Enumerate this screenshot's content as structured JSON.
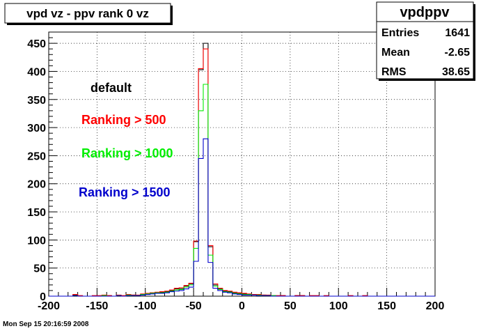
{
  "title_box": {
    "text": "vpd vz - ppv rank 0 vz"
  },
  "stats_box": {
    "name": "vpdppv",
    "rows": [
      {
        "label": "Entries",
        "value": "1641"
      },
      {
        "label": "Mean",
        "value": "-2.65"
      },
      {
        "label": "RMS",
        "value": "38.65"
      }
    ]
  },
  "annotations": [
    {
      "text": "default",
      "color": "#000000"
    },
    {
      "text": "Ranking > 500",
      "color": "#ff0000"
    },
    {
      "text": "Ranking > 1000",
      "color": "#00ee00"
    },
    {
      "text": "Ranking > 1500",
      "color": "#0000cc"
    }
  ],
  "timestamp": "Mon Sep 15 20:16:59 2008",
  "chart_data": {
    "type": "histogram-step",
    "xlim": [
      -200,
      200
    ],
    "ylim": [
      0,
      470
    ],
    "x_ticks": [
      -200,
      -150,
      -100,
      -50,
      0,
      50,
      100,
      150,
      200
    ],
    "x_tick_labels": [
      "-200",
      "-150",
      "-100",
      "-50",
      "0",
      "50",
      "100",
      "150",
      "200"
    ],
    "y_ticks": [
      0,
      50,
      100,
      150,
      200,
      250,
      300,
      350,
      400,
      450
    ],
    "y_tick_labels": [
      "0",
      "50",
      "100",
      "150",
      "200",
      "250",
      "300",
      "350",
      "400",
      "450"
    ],
    "grid": true,
    "bin_width": 5,
    "bin_start": -200,
    "series": [
      {
        "color": "#000000",
        "values": [
          0,
          0,
          0,
          0,
          0,
          2,
          0,
          0,
          0,
          0,
          0,
          1,
          1,
          0,
          1,
          0,
          2,
          2,
          1,
          3,
          4,
          6,
          6,
          7,
          8,
          10,
          13,
          13,
          18,
          22,
          97,
          403,
          450,
          88,
          20,
          13,
          9,
          8,
          6,
          5,
          4,
          3,
          3,
          2,
          2,
          1,
          1,
          0,
          1,
          0,
          0,
          1,
          1,
          0,
          0,
          0,
          0,
          0,
          0,
          0,
          0,
          0,
          0,
          0,
          0,
          0,
          0,
          0,
          0,
          0,
          0,
          0,
          0,
          0,
          0,
          0,
          0,
          0,
          0,
          0
        ]
      },
      {
        "color": "#ff0000",
        "values": [
          0,
          0,
          0,
          0,
          0,
          3,
          1,
          0,
          0,
          1,
          1,
          2,
          1,
          0,
          2,
          1,
          3,
          2,
          2,
          4,
          5,
          6,
          7,
          8,
          9,
          11,
          14,
          15,
          19,
          23,
          98,
          405,
          440,
          90,
          22,
          14,
          10,
          9,
          7,
          6,
          5,
          4,
          3,
          3,
          2,
          2,
          1,
          1,
          1,
          0,
          0,
          1,
          1,
          0,
          1,
          1,
          0,
          1,
          0,
          0,
          0,
          0,
          1,
          0,
          0,
          1,
          0,
          0,
          0,
          0,
          0,
          0,
          0,
          0,
          0,
          0,
          0,
          0,
          0,
          0
        ]
      },
      {
        "color": "#00ee00",
        "values": [
          0,
          0,
          0,
          0,
          0,
          1,
          0,
          0,
          0,
          0,
          0,
          1,
          0,
          0,
          1,
          0,
          2,
          1,
          1,
          3,
          4,
          5,
          6,
          6,
          7,
          9,
          11,
          12,
          16,
          20,
          85,
          330,
          377,
          73,
          18,
          12,
          8,
          7,
          5,
          4,
          3,
          3,
          2,
          2,
          1,
          1,
          1,
          0,
          0,
          0,
          0,
          0,
          0,
          0,
          0,
          0,
          0,
          0,
          0,
          0,
          0,
          0,
          0,
          0,
          0,
          0,
          0,
          0,
          0,
          0,
          0,
          0,
          0,
          0,
          0,
          0,
          0,
          0,
          0,
          0
        ]
      },
      {
        "color": "#0000cc",
        "values": [
          0,
          0,
          0,
          0,
          0,
          1,
          0,
          0,
          0,
          0,
          0,
          0,
          0,
          0,
          1,
          0,
          1,
          1,
          1,
          2,
          3,
          4,
          5,
          5,
          6,
          8,
          9,
          10,
          13,
          16,
          62,
          245,
          280,
          60,
          14,
          10,
          7,
          6,
          4,
          3,
          2,
          2,
          2,
          1,
          1,
          1,
          0,
          0,
          0,
          0,
          0,
          0,
          0,
          0,
          0,
          0,
          0,
          0,
          0,
          0,
          0,
          0,
          0,
          0,
          0,
          0,
          0,
          0,
          0,
          0,
          0,
          0,
          0,
          0,
          0,
          0,
          0,
          0,
          0,
          0
        ]
      }
    ]
  }
}
